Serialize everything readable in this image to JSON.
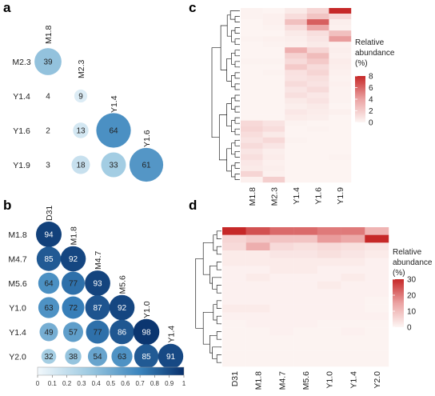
{
  "panels": {
    "a": {
      "letter": "a",
      "row_labels": [
        "M2.3",
        "Y1.4",
        "Y1.6",
        "Y1.9"
      ],
      "col_labels": [
        "M1.8",
        "M2.3",
        "Y1.4",
        "Y1.6"
      ]
    },
    "b": {
      "letter": "b",
      "row_labels": [
        "M1.8",
        "M4.7",
        "M5.6",
        "Y1.0",
        "Y1.4",
        "Y2.0"
      ],
      "col_labels": [
        "D31",
        "M1.8",
        "M4.7",
        "M5.6",
        "Y1.0",
        "Y1.4"
      ],
      "colorbar_ticks": [
        "0",
        "0.1",
        "0.2",
        "0.3",
        "0.4",
        "0.5",
        "0.6",
        "0.7",
        "0.8",
        "0.9",
        "1"
      ]
    },
    "c": {
      "letter": "c",
      "x_labels": [
        "M1.8",
        "M2.3",
        "Y1.4",
        "Y1.6",
        "Y1.9"
      ],
      "legend_title": [
        "Relative",
        "abundance",
        "(%)"
      ],
      "legend_ticks": [
        "8",
        "6",
        "4",
        "2",
        "0"
      ]
    },
    "d": {
      "letter": "d",
      "x_labels": [
        "D31",
        "M1.8",
        "M4.7",
        "M5.6",
        "Y1.0",
        "Y1.4",
        "Y2.0"
      ],
      "legend_title": [
        "Relative",
        "abundance",
        "(%)"
      ],
      "legend_ticks": [
        "30",
        "20",
        "10",
        "0"
      ]
    }
  },
  "colors": {
    "blue_low": "#d4e8f4",
    "blue_high": "#08306b",
    "red_low": "#fdf6f4",
    "red_high": "#c62828"
  },
  "chart_data": [
    {
      "id": "a",
      "type": "heatmap",
      "rows": [
        "M2.3",
        "Y1.4",
        "Y1.6",
        "Y1.9"
      ],
      "columns": [
        "M1.8",
        "M2.3",
        "Y1.4",
        "Y1.6"
      ],
      "cells": [
        {
          "row": "M2.3",
          "col": "M1.8",
          "value": 39
        },
        {
          "row": "Y1.4",
          "col": "M1.8",
          "value": 4
        },
        {
          "row": "Y1.4",
          "col": "M2.3",
          "value": 9
        },
        {
          "row": "Y1.6",
          "col": "M1.8",
          "value": 2
        },
        {
          "row": "Y1.6",
          "col": "M2.3",
          "value": 13
        },
        {
          "row": "Y1.6",
          "col": "Y1.4",
          "value": 64
        },
        {
          "row": "Y1.9",
          "col": "M1.8",
          "value": 3
        },
        {
          "row": "Y1.9",
          "col": "M2.3",
          "value": 18
        },
        {
          "row": "Y1.9",
          "col": "Y1.4",
          "value": 33
        },
        {
          "row": "Y1.9",
          "col": "Y1.6",
          "value": 61
        }
      ]
    },
    {
      "id": "b",
      "type": "heatmap",
      "rows": [
        "M1.8",
        "M4.7",
        "M5.6",
        "Y1.0",
        "Y1.4",
        "Y2.0"
      ],
      "columns": [
        "D31",
        "M1.8",
        "M4.7",
        "M5.6",
        "Y1.0",
        "Y1.4"
      ],
      "color_scale": [
        0,
        1
      ],
      "cells": [
        {
          "row": "M1.8",
          "col": "D31",
          "value": 94
        },
        {
          "row": "M4.7",
          "col": "D31",
          "value": 85
        },
        {
          "row": "M4.7",
          "col": "M1.8",
          "value": 92
        },
        {
          "row": "M5.6",
          "col": "D31",
          "value": 64
        },
        {
          "row": "M5.6",
          "col": "M1.8",
          "value": 77
        },
        {
          "row": "M5.6",
          "col": "M4.7",
          "value": 93
        },
        {
          "row": "Y1.0",
          "col": "D31",
          "value": 63
        },
        {
          "row": "Y1.0",
          "col": "M1.8",
          "value": 72
        },
        {
          "row": "Y1.0",
          "col": "M4.7",
          "value": 87
        },
        {
          "row": "Y1.0",
          "col": "M5.6",
          "value": 92
        },
        {
          "row": "Y1.4",
          "col": "D31",
          "value": 49
        },
        {
          "row": "Y1.4",
          "col": "M1.8",
          "value": 57
        },
        {
          "row": "Y1.4",
          "col": "M4.7",
          "value": 77
        },
        {
          "row": "Y1.4",
          "col": "M5.6",
          "value": 86
        },
        {
          "row": "Y1.4",
          "col": "Y1.0",
          "value": 98
        },
        {
          "row": "Y2.0",
          "col": "D31",
          "value": 32
        },
        {
          "row": "Y2.0",
          "col": "M1.8",
          "value": 38
        },
        {
          "row": "Y2.0",
          "col": "M4.7",
          "value": 54
        },
        {
          "row": "Y2.0",
          "col": "M5.6",
          "value": 63
        },
        {
          "row": "Y2.0",
          "col": "Y1.0",
          "value": 85
        },
        {
          "row": "Y2.0",
          "col": "Y1.4",
          "value": 91
        }
      ]
    },
    {
      "id": "c",
      "type": "heatmap",
      "columns": [
        "M1.8",
        "M2.3",
        "Y1.4",
        "Y1.6",
        "Y1.9"
      ],
      "legend_range": [
        0,
        8
      ],
      "values": [
        [
          0.2,
          0.1,
          0.6,
          1.6,
          8.2
        ],
        [
          0.2,
          0.3,
          1.2,
          2.4,
          1.4
        ],
        [
          0.1,
          0.3,
          2.6,
          6.2,
          0.4
        ],
        [
          0.1,
          0.2,
          1.2,
          3.8,
          0.3
        ],
        [
          0.1,
          0.1,
          0.6,
          1.1,
          2.6
        ],
        [
          0.2,
          0.3,
          0.4,
          0.8,
          4.2
        ],
        [
          0.1,
          0.2,
          0.3,
          0.6,
          0.3
        ],
        [
          0.1,
          0.1,
          3.4,
          1.6,
          0.4
        ],
        [
          0.1,
          0.1,
          1.8,
          2.8,
          0.3
        ],
        [
          0.2,
          0.2,
          1.3,
          2.1,
          0.5
        ],
        [
          0.1,
          0.1,
          2.1,
          1.3,
          0.4
        ],
        [
          0.1,
          0.2,
          1.0,
          1.6,
          0.3
        ],
        [
          0.1,
          0.1,
          0.9,
          1.1,
          0.2
        ],
        [
          0.1,
          0.1,
          1.3,
          0.9,
          0.3
        ],
        [
          0.1,
          0.1,
          0.8,
          1.3,
          0.2
        ],
        [
          0.1,
          0.1,
          1.1,
          0.7,
          0.2
        ],
        [
          0.1,
          0.1,
          0.6,
          0.9,
          0.2
        ],
        [
          0.1,
          0.1,
          0.4,
          0.6,
          0.1
        ],
        [
          0.1,
          0.1,
          0.7,
          0.5,
          0.3
        ],
        [
          0.1,
          0.1,
          0.5,
          0.4,
          0.1
        ],
        [
          1.4,
          0.9,
          0.2,
          0.1,
          0.1
        ],
        [
          1.6,
          1.2,
          0.1,
          0.2,
          0.1
        ],
        [
          1.2,
          0.6,
          0.1,
          0.1,
          0.1
        ],
        [
          0.9,
          1.4,
          0.2,
          0.1,
          0.1
        ],
        [
          1.3,
          0.8,
          0.1,
          0.1,
          0.1
        ],
        [
          0.8,
          0.4,
          0.1,
          0.1,
          0.1
        ],
        [
          1.1,
          0.5,
          0.1,
          0.1,
          0.2
        ],
        [
          0.7,
          0.3,
          0.1,
          0.1,
          0.1
        ],
        [
          0.6,
          0.4,
          0.1,
          0.1,
          0.1
        ],
        [
          1.6,
          0.3,
          0.1,
          0.1,
          0.1
        ],
        [
          0.3,
          1.9,
          0.1,
          0.1,
          0.1
        ]
      ]
    },
    {
      "id": "d",
      "type": "heatmap",
      "columns": [
        "D31",
        "M1.8",
        "M4.7",
        "M5.6",
        "Y1.0",
        "Y1.4",
        "Y2.0"
      ],
      "legend_range": [
        0,
        30
      ],
      "values": [
        [
          30,
          25,
          22,
          22,
          20,
          20,
          12
        ],
        [
          6,
          8,
          9,
          9,
          16,
          14,
          33
        ],
        [
          5,
          13,
          5,
          4,
          5,
          4,
          3
        ],
        [
          2,
          2,
          3,
          3,
          4,
          3,
          2
        ],
        [
          2,
          2,
          2,
          2,
          2,
          2,
          1
        ],
        [
          1,
          1,
          2,
          2,
          1,
          1,
          1
        ],
        [
          1,
          2,
          1,
          1,
          1,
          2,
          1
        ],
        [
          1,
          1,
          1,
          1,
          2,
          1,
          1
        ],
        [
          1,
          1,
          1,
          1,
          1,
          1,
          1
        ],
        [
          1,
          1,
          1,
          1,
          1,
          1,
          0.5
        ],
        [
          2,
          2,
          1,
          1,
          1,
          1,
          0.5
        ],
        [
          1,
          1,
          1,
          1,
          1,
          1,
          1
        ],
        [
          0.5,
          1,
          1,
          1,
          0.5,
          0.5,
          0.5
        ],
        [
          0.5,
          0.5,
          1,
          0.5,
          0.5,
          1,
          0.5
        ],
        [
          0.5,
          0.5,
          0.5,
          0.5,
          0.5,
          0.5,
          0.5
        ],
        [
          0.5,
          0.5,
          0.5,
          0.5,
          0.5,
          0.5,
          0.5
        ],
        [
          0.5,
          0.5,
          0.5,
          0.5,
          0.5,
          0.5,
          0.5
        ],
        [
          0.5,
          0.5,
          0.5,
          0.5,
          0.5,
          0.5,
          0.5
        ]
      ]
    }
  ]
}
